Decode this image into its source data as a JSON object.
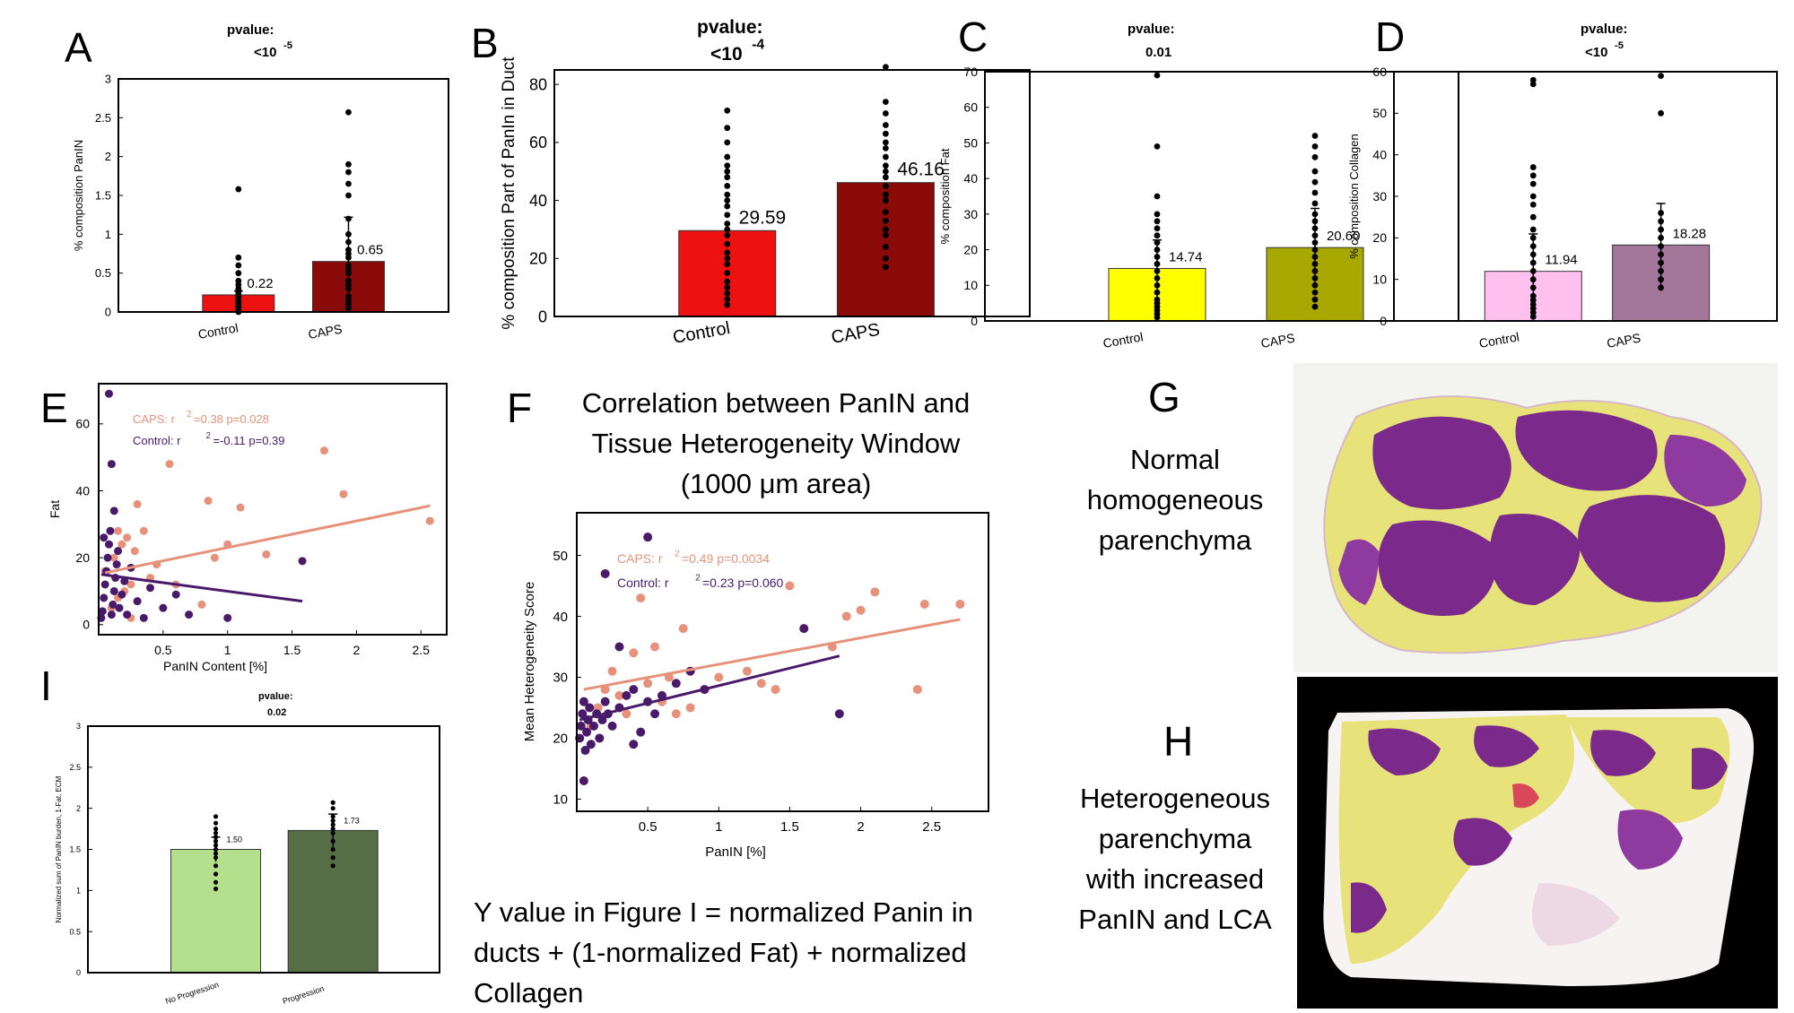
{
  "panel_labels": {
    "A": "A",
    "B": "B",
    "C": "C",
    "D": "D",
    "E": "E",
    "F": "F",
    "G": "G",
    "H": "H",
    "I": "I"
  },
  "colors": {
    "control_red": "#ee1111",
    "caps_red": "#8b0a0a",
    "control_yellow": "#ffff00",
    "caps_olive": "#a9a800",
    "control_pink": "#ffc0f0",
    "caps_mauve": "#a3779a",
    "caps_series": "#e8917a",
    "control_series": "#4a1a6a",
    "nonprog_green": "#b4e08e",
    "prog_green": "#566d45",
    "tissue_purple": "#7b2a8c",
    "tissue_yellow": "#e8e27a"
  },
  "panel_F": {
    "title_line1": "Correlation between PanIN and",
    "title_line2": "Tissue Heterogeneity Window",
    "title_line3": "(1000 μm area)"
  },
  "panel_G": {
    "line1": "Normal",
    "line2": "homogeneous",
    "line3": "parenchyma"
  },
  "panel_H": {
    "line1": "Heterogeneous",
    "line2": "parenchyma",
    "line3": "with increased",
    "line4": "PanIN and LCA"
  },
  "note": {
    "line1": "Y value in Figure I  = normalized Panin in",
    "line2": "ducts + (1-normalized Fat) + normalized",
    "line3": "Collagen"
  },
  "chart_data": [
    {
      "id": "A",
      "type": "bar",
      "title_line1": "pvalue:",
      "title_line2": "<10",
      "title_exp": "-5",
      "categories": [
        "Control",
        "CAPS"
      ],
      "values": [
        0.22,
        0.65
      ],
      "value_labels": [
        "0.22",
        "0.65"
      ],
      "errors": [
        0.05,
        0.57
      ],
      "ylabel": "% composition PanIN",
      "ylim": [
        0,
        3
      ],
      "yticks": [
        "0",
        "0.5",
        "1",
        "1.5",
        "2",
        "2.5",
        "3"
      ],
      "points": [
        [
          0,
          0.05,
          0.1,
          0.15,
          0.2,
          0.25,
          0.3,
          0.35,
          0.4,
          0.5,
          0.6,
          0.7,
          1.58,
          0.02,
          0.08,
          0.12,
          0.18,
          0.22,
          0.28,
          0.03
        ],
        [
          0.05,
          0.1,
          0.2,
          0.3,
          0.4,
          0.5,
          0.6,
          0.7,
          0.8,
          0.9,
          1.0,
          1.2,
          1.5,
          1.65,
          1.8,
          1.9,
          2.57,
          0.15,
          0.35,
          0.55,
          0.75
        ]
      ]
    },
    {
      "id": "B",
      "type": "bar",
      "title_line1": "pvalue:",
      "title_line2": "<10",
      "title_exp": "-4",
      "categories": [
        "Control",
        "CAPS"
      ],
      "values": [
        29.59,
        46.16
      ],
      "value_labels": [
        "29.59",
        "46.16"
      ],
      "errors": [
        0,
        0
      ],
      "ylabel": "% composition Part of PanIn in Duct",
      "ylim": [
        0,
        85
      ],
      "yticks": [
        "0",
        "20",
        "40",
        "60",
        "80"
      ],
      "points": [
        [
          4,
          6,
          8,
          10,
          12,
          15,
          18,
          20,
          22,
          25,
          28,
          30,
          32,
          35,
          38,
          40,
          42,
          45,
          48,
          50,
          52,
          55,
          60,
          65,
          71
        ],
        [
          17,
          20,
          24,
          28,
          30,
          33,
          36,
          40,
          42,
          45,
          48,
          50,
          52,
          55,
          58,
          60,
          63,
          66,
          70,
          74,
          86
        ]
      ]
    },
    {
      "id": "C",
      "type": "bar",
      "title_line1": "pvalue:",
      "title_line2": "0.01",
      "title_exp": "",
      "categories": [
        "Control",
        "CAPS"
      ],
      "values": [
        14.74,
        20.6
      ],
      "value_labels": [
        "14.74",
        "20.60"
      ],
      "errors": [
        8,
        11
      ],
      "ylabel": "% composition Fat",
      "ylim": [
        0,
        70
      ],
      "yticks": [
        "0",
        "10",
        "20",
        "30",
        "40",
        "50",
        "60",
        "70"
      ],
      "points": [
        [
          1,
          2,
          3,
          4,
          5,
          6,
          8,
          10,
          12,
          14,
          16,
          18,
          20,
          22,
          24,
          26,
          28,
          30,
          35,
          49,
          69
        ],
        [
          4,
          6,
          8,
          10,
          12,
          14,
          16,
          18,
          20,
          22,
          24,
          26,
          28,
          30,
          33,
          36,
          39,
          42,
          46,
          49,
          52
        ]
      ]
    },
    {
      "id": "D",
      "type": "bar",
      "title_line1": "pvalue:",
      "title_line2": "<10",
      "title_exp": "-5",
      "categories": [
        "Control",
        "CAPS"
      ],
      "values": [
        11.94,
        18.28
      ],
      "value_labels": [
        "11.94",
        "18.28"
      ],
      "errors": [
        9,
        10
      ],
      "ylabel": "% composition Collagen",
      "ylim": [
        0,
        60
      ],
      "yticks": [
        "0",
        "10",
        "20",
        "30",
        "40",
        "50",
        "60"
      ],
      "points": [
        [
          1,
          2,
          3,
          4,
          5,
          6,
          8,
          10,
          12,
          14,
          16,
          18,
          20,
          22,
          25,
          28,
          30,
          33,
          35,
          37,
          57,
          58
        ],
        [
          8,
          10,
          12,
          14,
          16,
          18,
          20,
          22,
          24,
          26,
          50,
          59
        ]
      ]
    },
    {
      "id": "E",
      "type": "scatter",
      "ylabel": "Fat",
      "xlabel": "PanIN Content [%]",
      "xlim": [
        0,
        2.7
      ],
      "ylim": [
        -3,
        72
      ],
      "xticks": [
        "0.5",
        "1",
        "1.5",
        "2",
        "2.5"
      ],
      "yticks": [
        "0",
        "20",
        "40",
        "60"
      ],
      "legend": [
        {
          "name": "CAPS: r",
          "exp": "2",
          "stat": "=0.38  p=0.028"
        },
        {
          "name": "Control: r",
          "exp": "2",
          "stat": "=-0.11  p=0.39"
        }
      ],
      "series": [
        {
          "points": [
            [
              0.1,
              5
            ],
            [
              0.15,
              8
            ],
            [
              0.2,
              10
            ],
            [
              0.25,
              12
            ],
            [
              0.3,
              7
            ],
            [
              0.12,
              20
            ],
            [
              0.18,
              24
            ],
            [
              0.22,
              26
            ],
            [
              0.28,
              22
            ],
            [
              0.35,
              28
            ],
            [
              0.4,
              14
            ],
            [
              0.55,
              48
            ],
            [
              0.6,
              12
            ],
            [
              0.8,
              6
            ],
            [
              0.85,
              37
            ],
            [
              0.9,
              20
            ],
            [
              1.0,
              24
            ],
            [
              1.1,
              35
            ],
            [
              1.3,
              21
            ],
            [
              1.75,
              52
            ],
            [
              1.9,
              39
            ],
            [
              2.57,
              31
            ],
            [
              0.3,
              36
            ],
            [
              0.25,
              2
            ],
            [
              0.15,
              28
            ],
            [
              0.05,
              16
            ],
            [
              0.45,
              18
            ]
          ],
          "fit": [
            [
              0.05,
              15.5
            ],
            [
              2.57,
              35.5
            ]
          ]
        },
        {
          "points": [
            [
              0.02,
              2
            ],
            [
              0.03,
              4
            ],
            [
              0.04,
              8
            ],
            [
              0.05,
              12
            ],
            [
              0.06,
              16
            ],
            [
              0.07,
              20
            ],
            [
              0.08,
              24
            ],
            [
              0.09,
              28
            ],
            [
              0.1,
              3
            ],
            [
              0.11,
              6
            ],
            [
              0.12,
              10
            ],
            [
              0.13,
              14
            ],
            [
              0.14,
              18
            ],
            [
              0.15,
              22
            ],
            [
              0.16,
              5
            ],
            [
              0.18,
              9
            ],
            [
              0.2,
              13
            ],
            [
              0.22,
              3
            ],
            [
              0.25,
              17
            ],
            [
              0.3,
              7
            ],
            [
              0.35,
              2
            ],
            [
              0.4,
              11
            ],
            [
              0.5,
              5
            ],
            [
              0.6,
              9
            ],
            [
              0.7,
              3
            ],
            [
              0.08,
              69
            ],
            [
              0.1,
              48
            ],
            [
              0.12,
              34
            ],
            [
              0.04,
              26
            ],
            [
              1.58,
              19
            ],
            [
              1.0,
              2
            ]
          ],
          "fit": [
            [
              0.02,
              15
            ],
            [
              1.58,
              7
            ]
          ]
        }
      ]
    },
    {
      "id": "F",
      "type": "scatter",
      "ylabel": "Mean Heterogeneity Score",
      "xlabel": "PanIN [%]",
      "xlim": [
        0,
        2.9
      ],
      "ylim": [
        8,
        57
      ],
      "xticks": [
        "0.5",
        "1",
        "1.5",
        "2",
        "2.5"
      ],
      "yticks": [
        "10",
        "20",
        "30",
        "40",
        "50"
      ],
      "legend": [
        {
          "name": "CAPS: r",
          "exp": "2",
          "stat": "=0.49  p=0.0034"
        },
        {
          "name": "Control: r",
          "exp": "2",
          "stat": "=0.23  p=0.060"
        }
      ],
      "series": [
        {
          "points": [
            [
              0.1,
              22
            ],
            [
              0.15,
              25
            ],
            [
              0.2,
              28
            ],
            [
              0.25,
              31
            ],
            [
              0.3,
              27
            ],
            [
              0.35,
              24
            ],
            [
              0.4,
              34
            ],
            [
              0.45,
              43
            ],
            [
              0.5,
              29
            ],
            [
              0.55,
              35
            ],
            [
              0.6,
              26
            ],
            [
              0.7,
              24
            ],
            [
              0.75,
              38
            ],
            [
              0.8,
              25
            ],
            [
              0.9,
              28
            ],
            [
              1.0,
              30
            ],
            [
              1.2,
              31
            ],
            [
              1.3,
              29
            ],
            [
              1.5,
              45
            ],
            [
              1.6,
              38
            ],
            [
              1.8,
              35
            ],
            [
              1.9,
              40
            ],
            [
              2.0,
              41
            ],
            [
              2.1,
              44
            ],
            [
              2.4,
              28
            ],
            [
              2.45,
              42
            ],
            [
              2.7,
              42
            ],
            [
              1.4,
              28
            ],
            [
              0.65,
              30
            ]
          ],
          "fit": [
            [
              0.05,
              28
            ],
            [
              2.7,
              39.5
            ]
          ]
        },
        {
          "points": [
            [
              0.02,
              20
            ],
            [
              0.03,
              22
            ],
            [
              0.04,
              24
            ],
            [
              0.05,
              26
            ],
            [
              0.06,
              18
            ],
            [
              0.07,
              21
            ],
            [
              0.08,
              23
            ],
            [
              0.09,
              25
            ],
            [
              0.1,
              19
            ],
            [
              0.12,
              22
            ],
            [
              0.14,
              24
            ],
            [
              0.16,
              20
            ],
            [
              0.18,
              23
            ],
            [
              0.2,
              26
            ],
            [
              0.22,
              24
            ],
            [
              0.25,
              22
            ],
            [
              0.3,
              25
            ],
            [
              0.35,
              27
            ],
            [
              0.4,
              28
            ],
            [
              0.45,
              21
            ],
            [
              0.5,
              26
            ],
            [
              0.55,
              24
            ],
            [
              0.6,
              27
            ],
            [
              0.7,
              29
            ],
            [
              0.8,
              31
            ],
            [
              0.9,
              28
            ],
            [
              0.5,
              53
            ],
            [
              0.2,
              47
            ],
            [
              0.05,
              13
            ],
            [
              0.3,
              35
            ],
            [
              1.6,
              38
            ],
            [
              1.85,
              24
            ],
            [
              0.4,
              19
            ]
          ],
          "fit": [
            [
              0.02,
              23
            ],
            [
              1.85,
              33.5
            ]
          ]
        }
      ]
    },
    {
      "id": "I",
      "type": "bar",
      "title_line1": "pvalue:",
      "title_line2": "0.02",
      "title_exp": "",
      "categories": [
        "No Progression",
        "Progression"
      ],
      "values": [
        1.5,
        1.73
      ],
      "value_labels": [
        "1.50",
        "1.73"
      ],
      "errors": [
        0.15,
        0.2
      ],
      "ylabel": "Normalized sum of PanIN burden, 1-Fat, ECM",
      "ylim": [
        0,
        3
      ],
      "yticks": [
        "0",
        "0.5",
        "1",
        "1.5",
        "2",
        "2.5",
        "3"
      ],
      "points": [
        [
          1.02,
          1.1,
          1.2,
          1.3,
          1.4,
          1.45,
          1.5,
          1.55,
          1.6,
          1.65,
          1.7,
          1.75,
          1.82,
          1.9
        ],
        [
          1.3,
          1.4,
          1.5,
          1.6,
          1.7,
          1.75,
          1.8,
          1.85,
          1.9,
          2.0,
          2.07
        ]
      ]
    }
  ]
}
